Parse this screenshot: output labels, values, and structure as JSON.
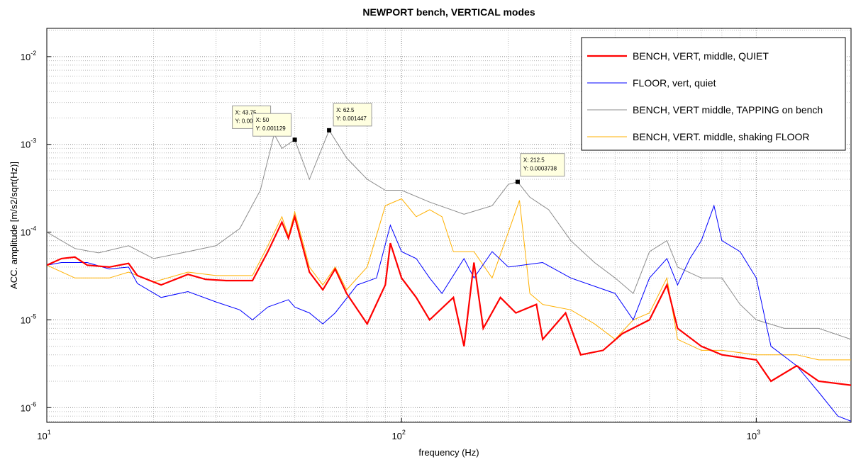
{
  "chart_data": {
    "type": "line",
    "title": "NEWPORT bench, VERTICAL modes",
    "xlabel": "frequency (Hz)",
    "ylabel": "ACC. amplitude [m/s2/sqrt(Hz)]",
    "xscale": "log",
    "yscale": "log",
    "xlim": [
      10,
      1850
    ],
    "ylim": [
      6.8e-07,
      0.021
    ],
    "xticks": [
      {
        "value": 10,
        "label": "10",
        "exp": "1"
      },
      {
        "value": 100,
        "label": "10",
        "exp": "2"
      },
      {
        "value": 1000,
        "label": "10",
        "exp": "3"
      }
    ],
    "yticks": [
      {
        "value": 1e-06,
        "label": "10",
        "exp": "-6"
      },
      {
        "value": 1e-05,
        "label": "10",
        "exp": "-5"
      },
      {
        "value": 0.0001,
        "label": "10",
        "exp": "-4"
      },
      {
        "value": 0.001,
        "label": "10",
        "exp": "-3"
      },
      {
        "value": 0.01,
        "label": "10",
        "exp": "-2"
      }
    ],
    "grid": true,
    "minor_grid": true,
    "legend": "upper right",
    "series": [
      {
        "name": "BENCH, VERT, middle, QUIET",
        "color": "#ff0000",
        "width": 2.2,
        "x": [
          10,
          11,
          12,
          13,
          15,
          17,
          18,
          21,
          25,
          28,
          32,
          38,
          42,
          46,
          48,
          50,
          55,
          60,
          65,
          70,
          80,
          90,
          93,
          100,
          110,
          120,
          140,
          150,
          160,
          170,
          190,
          210,
          240,
          250,
          290,
          320,
          370,
          420,
          500,
          560,
          600,
          700,
          800,
          1000,
          1100,
          1300,
          1500,
          1850
        ],
        "values": [
          4.2e-05,
          5e-05,
          5.2e-05,
          4.2e-05,
          4e-05,
          4.4e-05,
          3.2e-05,
          2.5e-05,
          3.3e-05,
          2.9e-05,
          2.8e-05,
          2.8e-05,
          6e-05,
          0.00013,
          8.5e-05,
          0.00015,
          3.5e-05,
          2.2e-05,
          3.8e-05,
          2e-05,
          9e-06,
          2.5e-05,
          7.5e-05,
          3e-05,
          1.8e-05,
          1e-05,
          1.8e-05,
          5e-06,
          4.5e-05,
          8e-06,
          1.8e-05,
          1.2e-05,
          1.5e-05,
          6e-06,
          1.2e-05,
          4e-06,
          4.5e-06,
          7e-06,
          1e-05,
          2.5e-05,
          8e-06,
          5e-06,
          4e-06,
          3.5e-06,
          2e-06,
          3e-06,
          2e-06,
          1.8e-06
        ]
      },
      {
        "name": "FLOOR, vert, quiet",
        "color": "#0000ff",
        "width": 1,
        "x": [
          10,
          11,
          13,
          15,
          17,
          18,
          21,
          25,
          30,
          35,
          38,
          42,
          48,
          50,
          55,
          60,
          65,
          75,
          85,
          93,
          100,
          110,
          120,
          130,
          150,
          160,
          180,
          200,
          250,
          300,
          400,
          450,
          500,
          560,
          600,
          650,
          700,
          760,
          800,
          900,
          1000,
          1100,
          1300,
          1500,
          1700,
          1850
        ],
        "values": [
          4.2e-05,
          4.5e-05,
          4.5e-05,
          3.8e-05,
          4e-05,
          2.6e-05,
          1.8e-05,
          2.1e-05,
          1.6e-05,
          1.3e-05,
          1e-05,
          1.4e-05,
          1.7e-05,
          1.4e-05,
          1.2e-05,
          9e-06,
          1.2e-05,
          2.5e-05,
          3e-05,
          0.00012,
          6e-05,
          5e-05,
          3e-05,
          2e-05,
          5e-05,
          3e-05,
          6e-05,
          4e-05,
          4.5e-05,
          3e-05,
          2e-05,
          1e-05,
          3e-05,
          5e-05,
          2.5e-05,
          5e-05,
          8e-05,
          0.0002,
          8e-05,
          6e-05,
          3e-05,
          5e-06,
          3e-06,
          1.5e-06,
          8e-07,
          7e-07
        ]
      },
      {
        "name": "BENCH, VERT middle, TAPPING on bench",
        "color": "#8c8c8c",
        "width": 1,
        "x": [
          10,
          12,
          14,
          17,
          20,
          25,
          30,
          35,
          40,
          43.75,
          46,
          50,
          55,
          62.5,
          70,
          80,
          90,
          100,
          120,
          150,
          180,
          200,
          212.5,
          230,
          260,
          300,
          350,
          400,
          450,
          500,
          560,
          600,
          700,
          800,
          900,
          1000,
          1200,
          1500,
          1850
        ],
        "values": [
          0.0001,
          6.5e-05,
          5.8e-05,
          7e-05,
          5e-05,
          6e-05,
          7e-05,
          0.00011,
          0.0003,
          0.001305,
          0.0009,
          0.001129,
          0.0004,
          0.001447,
          0.0007,
          0.0004,
          0.0003,
          0.0003,
          0.00022,
          0.00016,
          0.0002,
          0.00035,
          0.0003738,
          0.00025,
          0.00018,
          8e-05,
          4.5e-05,
          3e-05,
          2e-05,
          6e-05,
          8e-05,
          4e-05,
          3e-05,
          3e-05,
          1.5e-05,
          1e-05,
          8e-06,
          8e-06,
          6e-06
        ]
      },
      {
        "name": "BENCH, VERT. middle, shaking FLOOR",
        "color": "#ffb000",
        "width": 1,
        "x": [
          10,
          12,
          15,
          17,
          20,
          25,
          30,
          38,
          42,
          46,
          48,
          50,
          55,
          60,
          65,
          70,
          80,
          90,
          100,
          110,
          120,
          130,
          140,
          160,
          180,
          200,
          215,
          230,
          250,
          300,
          350,
          400,
          450,
          500,
          560,
          600,
          700,
          800,
          1000,
          1300,
          1500,
          1850
        ],
        "values": [
          4.2e-05,
          3e-05,
          3e-05,
          3.5e-05,
          2.7e-05,
          3.5e-05,
          3.2e-05,
          3.2e-05,
          7e-05,
          0.00015,
          9e-05,
          0.00017,
          4e-05,
          2.5e-05,
          4e-05,
          2.2e-05,
          4e-05,
          0.0002,
          0.00024,
          0.00015,
          0.00018,
          0.00015,
          6e-05,
          6e-05,
          3e-05,
          0.0001,
          0.00023,
          2e-05,
          1.5e-05,
          1.3e-05,
          9e-06,
          6e-06,
          1e-05,
          1.2e-05,
          3e-05,
          6e-06,
          4.5e-06,
          4.5e-06,
          4e-06,
          4e-06,
          3.5e-06,
          3.5e-06
        ]
      }
    ],
    "datatips": [
      {
        "x": 43.75,
        "y": 0.001305,
        "text": [
          "X: 43.75",
          "Y: 0.001305"
        ]
      },
      {
        "x": 50,
        "y": 0.001129,
        "text": [
          "X: 50",
          "Y: 0.001129"
        ]
      },
      {
        "x": 62.5,
        "y": 0.001447,
        "text": [
          "X: 62.5",
          "Y: 0.001447"
        ]
      },
      {
        "x": 212.5,
        "y": 0.0003738,
        "text": [
          "X: 212.5",
          "Y: 0.0003738"
        ]
      }
    ]
  }
}
